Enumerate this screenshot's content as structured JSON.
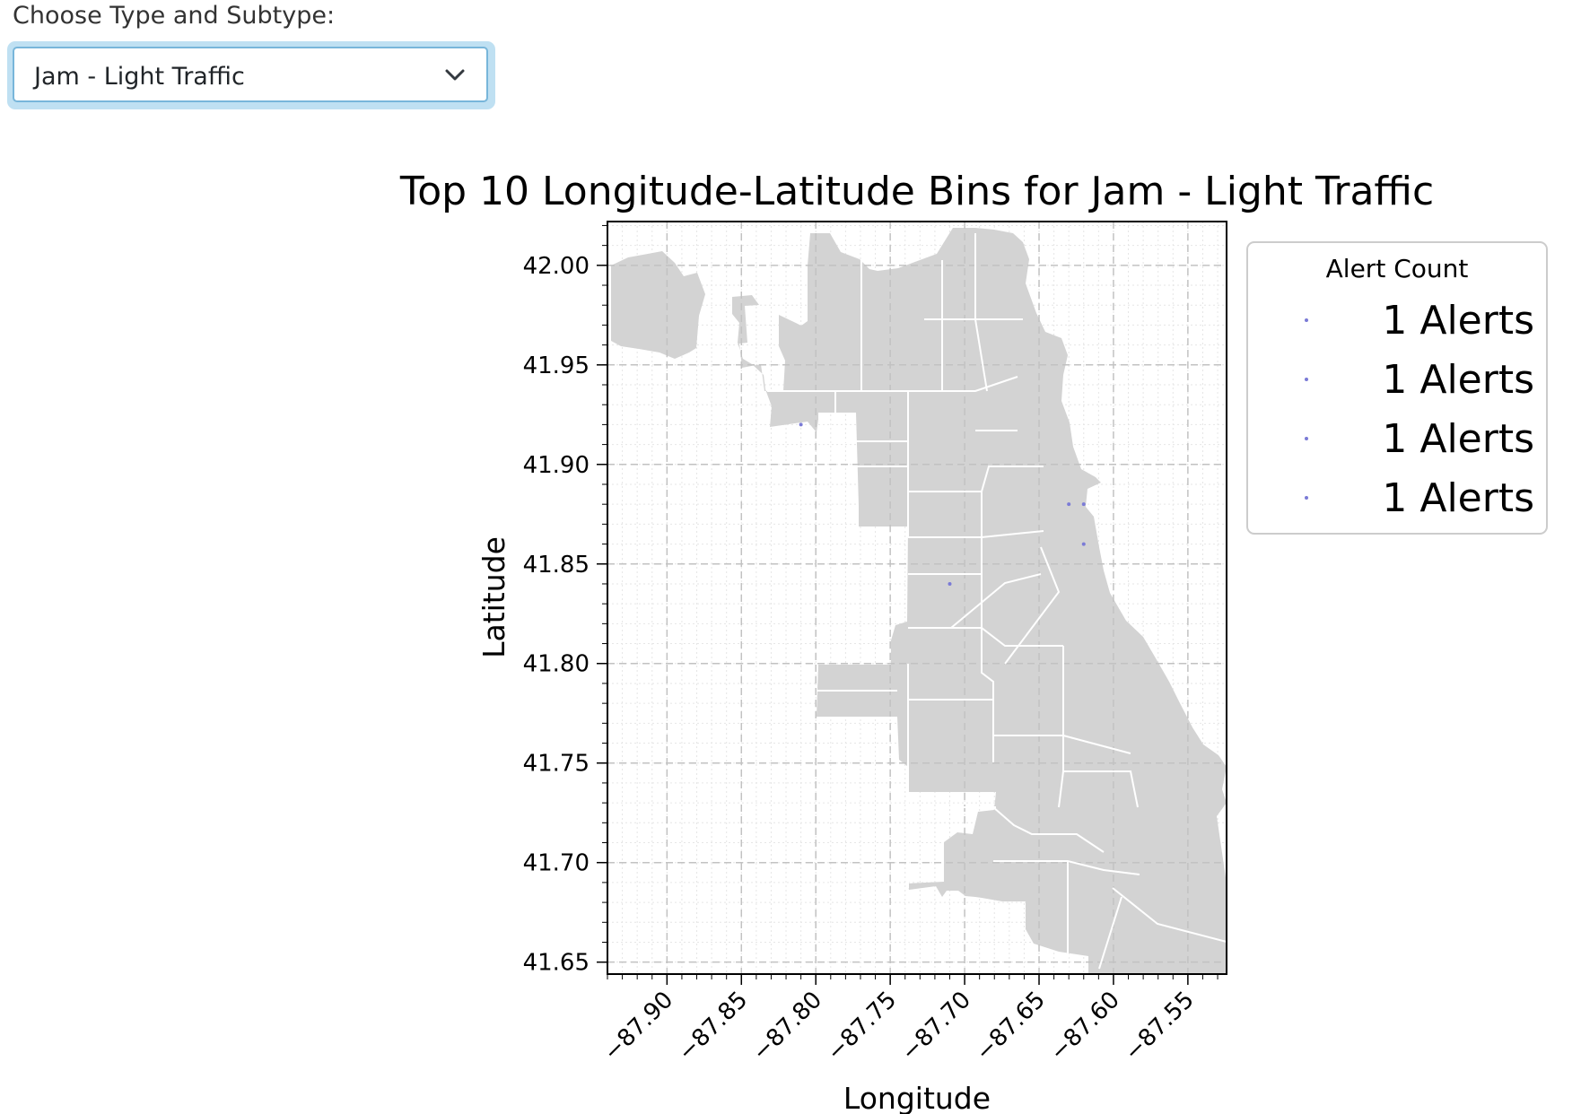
{
  "control": {
    "label": "Choose Type and Subtype:",
    "selected": "Jam - Light Traffic",
    "icon": "chevron-down-icon"
  },
  "chart_data": {
    "type": "scatter",
    "title": "Top 10 Longitude-Latitude Bins for Jam - Light Traffic",
    "xlabel": "Longitude",
    "ylabel": "Latitude",
    "xlim": [
      -87.94,
      -87.524
    ],
    "ylim": [
      41.644,
      42.022
    ],
    "xticks": [
      -87.9,
      -87.85,
      -87.8,
      -87.75,
      -87.7,
      -87.65,
      -87.6,
      -87.55
    ],
    "xtick_labels": [
      "−87.90",
      "−87.85",
      "−87.80",
      "−87.75",
      "−87.70",
      "−87.65",
      "−87.60",
      "−87.55"
    ],
    "yticks": [
      41.65,
      41.7,
      41.75,
      41.8,
      41.85,
      41.9,
      41.95,
      42.0
    ],
    "ytick_labels": [
      "41.65",
      "41.70",
      "41.75",
      "41.80",
      "41.85",
      "41.90",
      "41.95",
      "42.00"
    ],
    "grid": true,
    "basemap_color": "#d3d3d3",
    "point_color": "#7b7bd6",
    "points": [
      {
        "x": -87.81,
        "y": 41.92,
        "count": 1
      },
      {
        "x": -87.63,
        "y": 41.88,
        "count": 1
      },
      {
        "x": -87.62,
        "y": 41.88,
        "count": 1
      },
      {
        "x": -87.62,
        "y": 41.86,
        "count": 1
      },
      {
        "x": -87.71,
        "y": 41.84,
        "count": 1
      }
    ],
    "legend": {
      "title": "Alert Count",
      "placement": "outside-right",
      "entries": [
        "1 Alerts",
        "1 Alerts",
        "1 Alerts",
        "1 Alerts"
      ]
    }
  }
}
